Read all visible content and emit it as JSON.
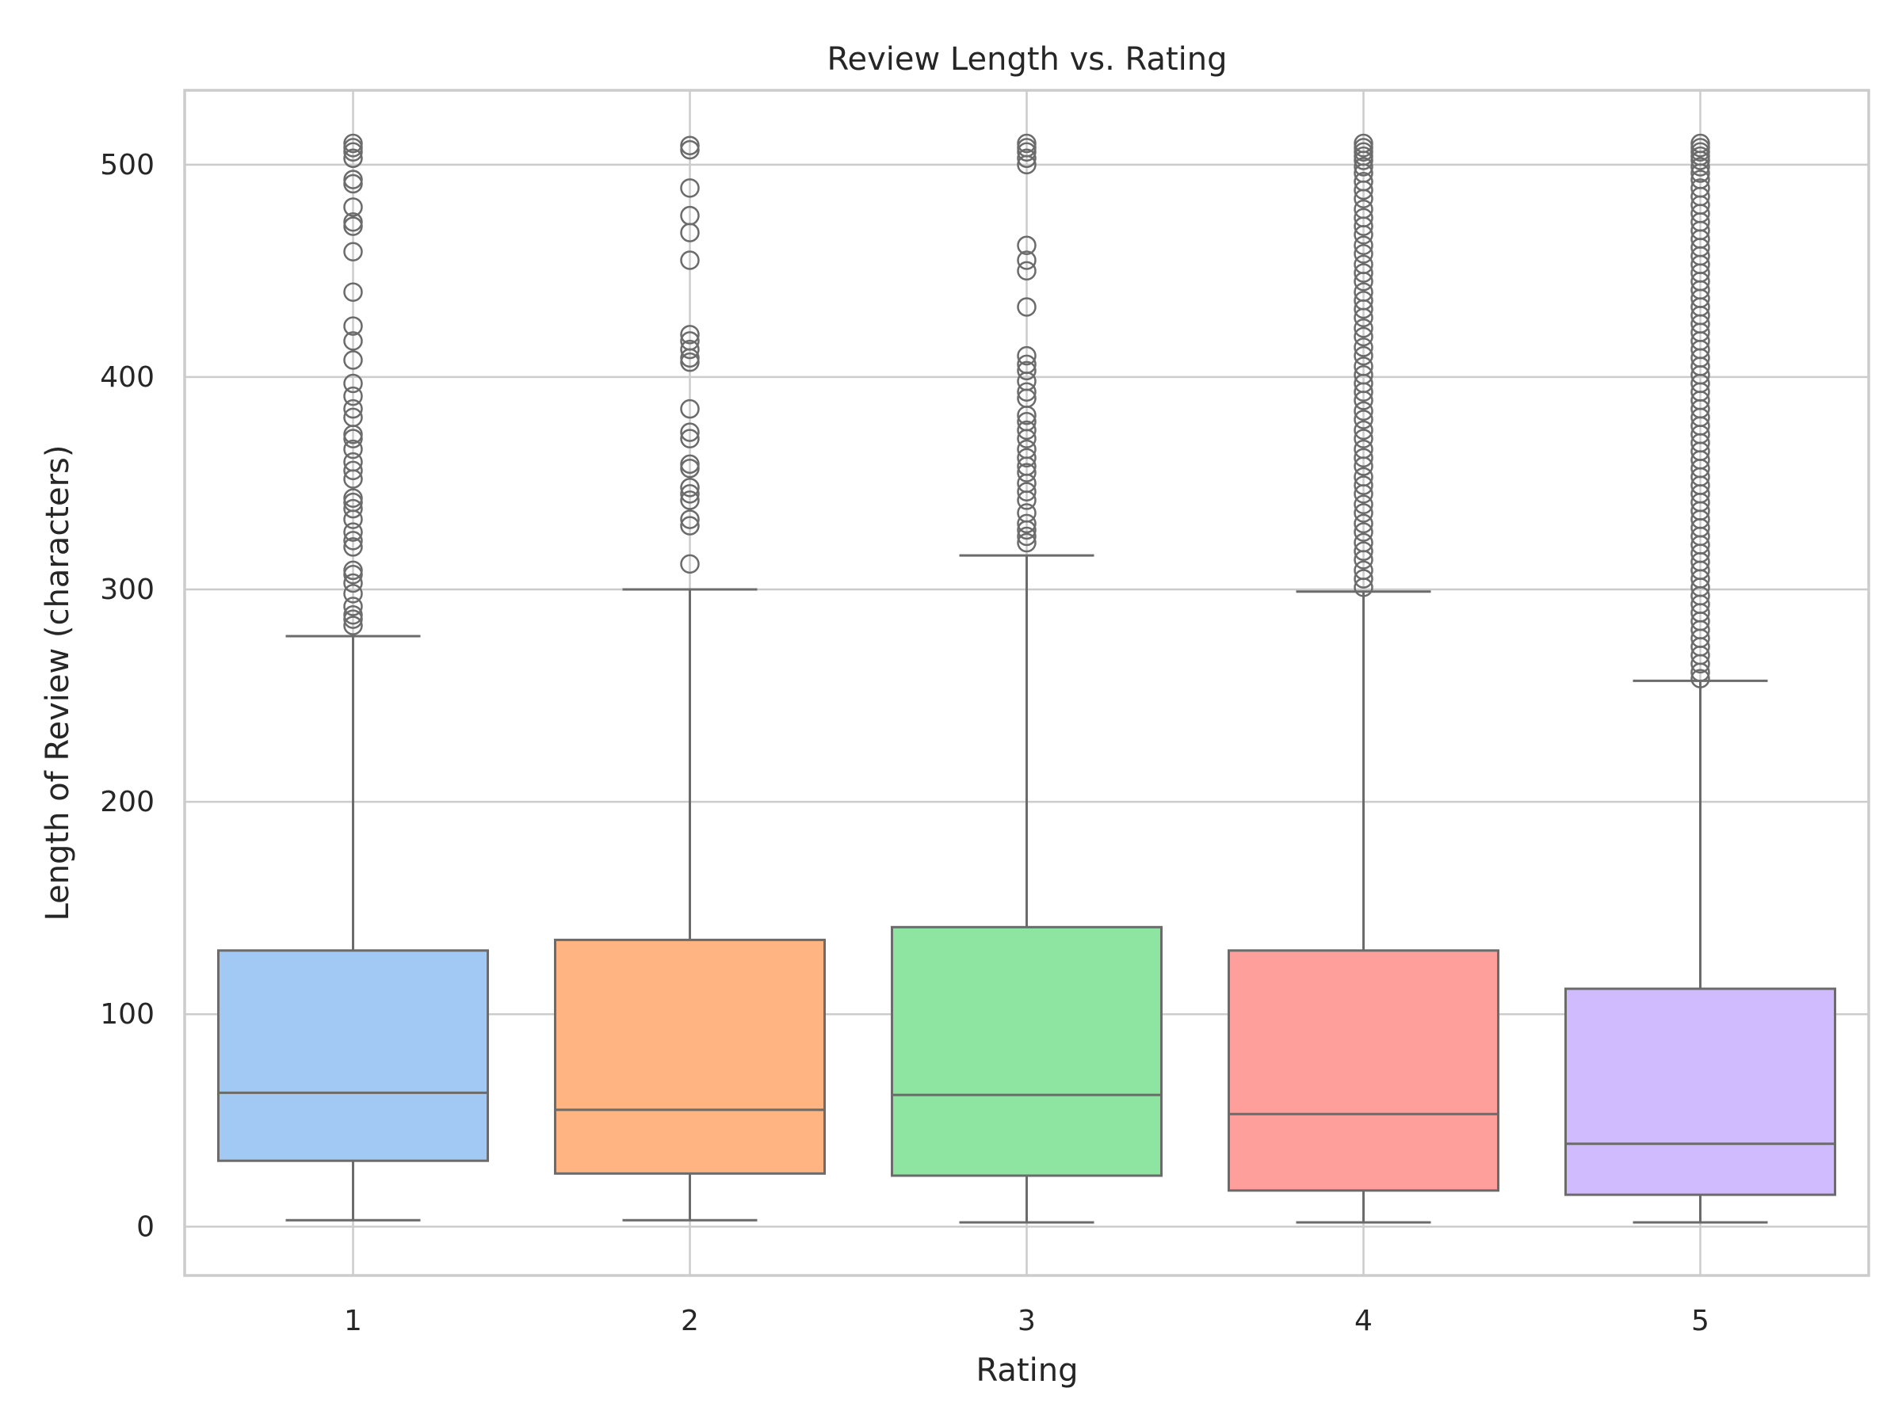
{
  "chart_data": {
    "type": "boxplot",
    "title": "Review Length vs. Rating",
    "xlabel": "Rating",
    "ylabel": "Length of Review (characters)",
    "ylim": [
      -23,
      535
    ],
    "yticks": [
      0,
      100,
      200,
      300,
      400,
      500
    ],
    "grid": true,
    "categories": [
      "1",
      "2",
      "3",
      "4",
      "5"
    ],
    "colors": [
      "#a1c9f4",
      "#ffb482",
      "#8de5a1",
      "#ff9f9b",
      "#d0bbff"
    ],
    "edge_color": "#6b6b6b",
    "boxes": [
      {
        "category": "1",
        "whisker_low": 3,
        "q1": 31,
        "median": 63,
        "q3": 130,
        "whisker_high": 278,
        "outliers": [
          283,
          286,
          288,
          292,
          298,
          303,
          307,
          309,
          320,
          323,
          327,
          333,
          338,
          341,
          343,
          352,
          356,
          360,
          366,
          371,
          373,
          381,
          385,
          391,
          397,
          408,
          417,
          424,
          440,
          459,
          471,
          473,
          480,
          491,
          493,
          503,
          506,
          508,
          510
        ]
      },
      {
        "category": "2",
        "whisker_low": 3,
        "q1": 25,
        "median": 55,
        "q3": 135,
        "whisker_high": 300,
        "outliers": [
          312,
          330,
          333,
          342,
          345,
          348,
          357,
          359,
          371,
          374,
          385,
          407,
          409,
          413,
          417,
          420,
          455,
          468,
          476,
          489,
          507,
          509
        ]
      },
      {
        "category": "3",
        "whisker_low": 2,
        "q1": 24,
        "median": 62,
        "q3": 141,
        "whisker_high": 316,
        "outliers": [
          322,
          325,
          328,
          331,
          336,
          342,
          346,
          350,
          355,
          358,
          362,
          366,
          371,
          375,
          379,
          382,
          390,
          393,
          398,
          403,
          406,
          410,
          433,
          450,
          455,
          462,
          500,
          503,
          506,
          508,
          510
        ]
      },
      {
        "category": "4",
        "whisker_low": 2,
        "q1": 17,
        "median": 53,
        "q3": 130,
        "whisker_high": 299,
        "outliers": [
          301,
          305,
          309,
          314,
          318,
          322,
          327,
          331,
          336,
          340,
          345,
          349,
          353,
          358,
          362,
          366,
          371,
          375,
          380,
          384,
          389,
          393,
          397,
          401,
          405,
          410,
          414,
          419,
          423,
          428,
          432,
          436,
          440,
          445,
          449,
          453,
          458,
          462,
          467,
          471,
          475,
          479,
          484,
          488,
          492,
          496,
          499,
          502,
          504,
          506,
          508,
          510
        ]
      },
      {
        "category": "5",
        "whisker_low": 2,
        "q1": 15,
        "median": 39,
        "q3": 112,
        "whisker_high": 257,
        "outliers": [
          258,
          261,
          265,
          269,
          273,
          277,
          281,
          285,
          289,
          293,
          297,
          301,
          305,
          309,
          313,
          317,
          321,
          325,
          329,
          333,
          337,
          341,
          345,
          349,
          353,
          357,
          361,
          365,
          369,
          373,
          377,
          381,
          385,
          389,
          393,
          397,
          401,
          405,
          409,
          413,
          417,
          421,
          425,
          429,
          433,
          437,
          441,
          445,
          449,
          453,
          457,
          461,
          465,
          469,
          473,
          477,
          481,
          485,
          489,
          493,
          496,
          499,
          502,
          504,
          506,
          508,
          510
        ]
      }
    ]
  }
}
